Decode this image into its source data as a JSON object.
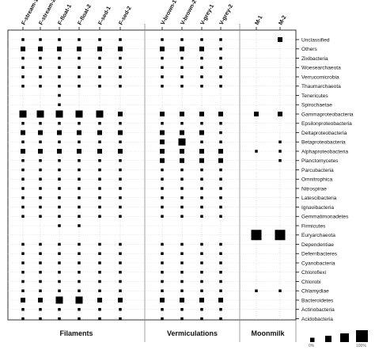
{
  "chart_data": {
    "type": "bubble-matrix",
    "samples": [
      "F-stream-1",
      "F-stream-2",
      "F-float-1",
      "F-float-2",
      "F-sed-1",
      "F-sed-2",
      "V-brown-1",
      "V-brown-2",
      "V-grey-1",
      "V-grey-2",
      "M-1",
      "M-2"
    ],
    "groups": [
      {
        "name": "Filaments",
        "samples": 6
      },
      {
        "name": "Vermiculations",
        "samples": 4
      },
      {
        "name": "Moonmilk",
        "samples": 2
      }
    ],
    "taxa": [
      "Unclassified",
      "Others",
      "Zixibacteria",
      "Woesearchaeota",
      "Verrucomicrobia",
      "Thaumarchaeota",
      "Tenericutes",
      "Spirochaetae",
      "Gammaproteobacteria",
      "Epsilonproteobacteria",
      "Deltaproteobacteria",
      "Betaproteobacteria",
      "Alphaproteobacteria",
      "Planctomycetes",
      "Parcubacteria",
      "Omnitrophica",
      "Nitrospirae",
      "Latescibacteria",
      "Ignavibacteria",
      "Gemmatimonadetes",
      "Firmicutes",
      "Euryarchaeota",
      "Dependentiae",
      "Deferribacteres",
      "Cyanobacteria",
      "Chloroflexi",
      "Chlorobi",
      "Chlamydiae",
      "Bacteroidetes",
      "Actinobacteria",
      "Acidobacteria"
    ],
    "relative_size": [
      [
        1,
        1,
        1,
        1,
        1,
        1,
        1,
        1,
        1,
        1,
        0,
        2
      ],
      [
        2,
        2,
        2,
        2,
        2,
        2,
        2,
        2,
        2,
        1,
        0,
        0
      ],
      [
        1,
        1,
        1,
        1,
        1,
        1,
        1,
        1,
        1,
        1,
        0,
        0
      ],
      [
        1,
        1,
        1,
        1,
        1,
        1,
        1,
        1,
        1,
        1,
        0,
        0
      ],
      [
        1,
        1,
        1,
        1,
        1,
        1,
        1,
        1,
        1,
        1,
        0,
        0
      ],
      [
        1,
        1,
        1,
        1,
        1,
        1,
        1,
        1,
        1,
        1,
        0,
        0
      ],
      [
        0,
        0,
        1,
        0,
        0,
        0,
        0,
        0,
        0,
        0,
        0,
        0
      ],
      [
        0,
        0,
        1,
        0,
        0,
        0,
        0,
        0,
        0,
        0,
        0,
        0
      ],
      [
        3,
        3,
        3,
        3,
        3,
        2,
        2,
        2,
        2,
        2,
        2,
        2
      ],
      [
        1,
        1,
        1,
        1,
        1,
        1,
        1,
        1,
        1,
        1,
        0,
        0
      ],
      [
        2,
        2,
        2,
        2,
        2,
        2,
        2,
        2,
        2,
        1,
        0,
        0
      ],
      [
        1,
        1,
        1,
        1,
        1,
        1,
        2,
        3,
        1,
        1,
        0,
        1
      ],
      [
        2,
        2,
        2,
        2,
        2,
        2,
        2,
        2,
        2,
        2,
        1,
        1
      ],
      [
        1,
        1,
        1,
        1,
        1,
        1,
        2,
        2,
        2,
        2,
        0,
        1
      ],
      [
        1,
        1,
        1,
        1,
        1,
        1,
        1,
        1,
        1,
        1,
        0,
        0
      ],
      [
        1,
        1,
        1,
        1,
        1,
        1,
        1,
        1,
        1,
        1,
        0,
        0
      ],
      [
        1,
        1,
        1,
        1,
        1,
        1,
        1,
        1,
        1,
        1,
        0,
        0
      ],
      [
        1,
        1,
        1,
        1,
        1,
        1,
        1,
        1,
        1,
        1,
        0,
        0
      ],
      [
        1,
        1,
        1,
        1,
        1,
        1,
        1,
        1,
        1,
        1,
        0,
        0
      ],
      [
        1,
        1,
        1,
        1,
        1,
        1,
        1,
        1,
        1,
        1,
        0,
        0
      ],
      [
        0,
        0,
        1,
        1,
        0,
        0,
        0,
        0,
        0,
        0,
        0,
        0
      ],
      [
        0,
        0,
        0,
        0,
        0,
        0,
        0,
        0,
        0,
        0,
        4,
        4
      ],
      [
        1,
        1,
        1,
        1,
        1,
        1,
        1,
        1,
        1,
        1,
        0,
        0
      ],
      [
        1,
        1,
        1,
        1,
        1,
        1,
        1,
        1,
        1,
        1,
        0,
        0
      ],
      [
        1,
        1,
        1,
        1,
        1,
        1,
        1,
        1,
        1,
        1,
        0,
        0
      ],
      [
        1,
        1,
        1,
        1,
        1,
        1,
        1,
        1,
        1,
        1,
        0,
        0
      ],
      [
        1,
        1,
        1,
        1,
        1,
        1,
        1,
        1,
        1,
        1,
        0,
        0
      ],
      [
        1,
        1,
        1,
        1,
        1,
        1,
        1,
        1,
        1,
        1,
        1,
        1
      ],
      [
        2,
        2,
        3,
        3,
        2,
        2,
        2,
        2,
        2,
        2,
        0,
        0
      ],
      [
        1,
        1,
        1,
        1,
        1,
        1,
        1,
        1,
        1,
        1,
        0,
        0
      ],
      [
        1,
        1,
        1,
        1,
        1,
        1,
        1,
        1,
        1,
        1,
        0,
        0
      ]
    ],
    "legend": {
      "labels": [
        "0%",
        "100%"
      ],
      "sizes": [
        1,
        2,
        3,
        4
      ]
    },
    "colors": {
      "marker": "#000000",
      "frame": "#000000",
      "background": "#ffffff"
    }
  }
}
